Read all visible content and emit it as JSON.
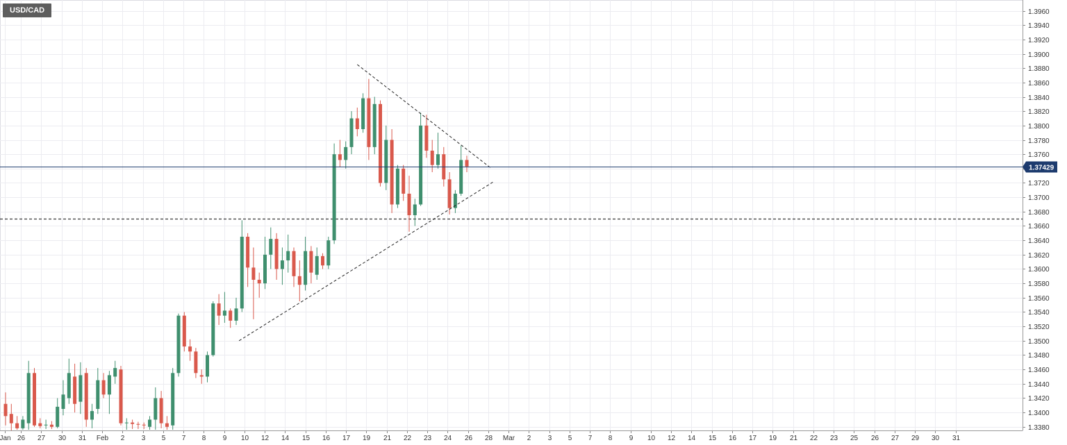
{
  "symbol": "USD/CAD",
  "chart_data": {
    "type": "candlestick",
    "title": "USD/CAD",
    "ylim": [
      1.3375,
      1.3975
    ],
    "y_ticks": [
      "1.3380",
      "1.3400",
      "1.3420",
      "1.3440",
      "1.3460",
      "1.3480",
      "1.3500",
      "1.3520",
      "1.3540",
      "1.3560",
      "1.3580",
      "1.3600",
      "1.3620",
      "1.3640",
      "1.3660",
      "1.3680",
      "1.3700",
      "1.3720",
      "1.3740",
      "1.3760",
      "1.3780",
      "1.3800",
      "1.3820",
      "1.3840",
      "1.3860",
      "1.3880",
      "1.3900",
      "1.3920",
      "1.3940",
      "1.3960"
    ],
    "x_ticks": [
      "Jan",
      "26",
      "27",
      "30",
      "31",
      "Feb",
      "2",
      "3",
      "5",
      "7",
      "8",
      "9",
      "10",
      "12",
      "14",
      "15",
      "16",
      "17",
      "19",
      "21",
      "22",
      "23",
      "24",
      "26",
      "28",
      "Mar",
      "2",
      "3",
      "5",
      "7",
      "8",
      "9",
      "10",
      "12",
      "14",
      "15",
      "16",
      "17",
      "19",
      "21",
      "22",
      "23",
      "25",
      "26",
      "27",
      "29",
      "30",
      "31"
    ],
    "current_price": 1.3743,
    "current_price_label": "1.37429",
    "horizontal_line": 1.367,
    "grid": true,
    "days": [
      {
        "o": 1.3412,
        "h": 1.3428,
        "l": 1.3382,
        "c": 1.3395
      },
      {
        "o": 1.3398,
        "h": 1.3412,
        "l": 1.3375,
        "c": 1.3385
      },
      {
        "o": 1.3385,
        "h": 1.3395,
        "l": 1.3376,
        "c": 1.3378
      },
      {
        "o": 1.3378,
        "h": 1.3395,
        "l": 1.3376,
        "c": 1.339
      },
      {
        "o": 1.3385,
        "h": 1.3472,
        "l": 1.3376,
        "c": 1.3455
      },
      {
        "o": 1.3455,
        "h": 1.3462,
        "l": 1.338,
        "c": 1.3382
      },
      {
        "o": 1.3385,
        "h": 1.3392,
        "l": 1.3378,
        "c": 1.3381
      },
      {
        "o": 1.3382,
        "h": 1.339,
        "l": 1.3377,
        "c": 1.3383
      },
      {
        "o": 1.3383,
        "h": 1.3388,
        "l": 1.3377,
        "c": 1.338
      },
      {
        "o": 1.338,
        "h": 1.342,
        "l": 1.3378,
        "c": 1.3408
      },
      {
        "o": 1.3405,
        "h": 1.3445,
        "l": 1.3396,
        "c": 1.3425
      },
      {
        "o": 1.342,
        "h": 1.3475,
        "l": 1.3412,
        "c": 1.3455
      },
      {
        "o": 1.345,
        "h": 1.3468,
        "l": 1.34,
        "c": 1.3412
      },
      {
        "o": 1.3415,
        "h": 1.347,
        "l": 1.3398,
        "c": 1.3452
      },
      {
        "o": 1.3455,
        "h": 1.3462,
        "l": 1.338,
        "c": 1.339
      },
      {
        "o": 1.339,
        "h": 1.3412,
        "l": 1.3378,
        "c": 1.3402
      },
      {
        "o": 1.3405,
        "h": 1.3462,
        "l": 1.3398,
        "c": 1.3445
      },
      {
        "o": 1.3445,
        "h": 1.3455,
        "l": 1.342,
        "c": 1.3425
      },
      {
        "o": 1.3425,
        "h": 1.3458,
        "l": 1.3398,
        "c": 1.3452
      },
      {
        "o": 1.345,
        "h": 1.3472,
        "l": 1.344,
        "c": 1.3462
      },
      {
        "o": 1.346,
        "h": 1.3465,
        "l": 1.3382,
        "c": 1.3385
      },
      {
        "o": 1.3385,
        "h": 1.3392,
        "l": 1.3376,
        "c": 1.3386
      },
      {
        "o": 1.3386,
        "h": 1.339,
        "l": 1.3377,
        "c": 1.3384
      },
      {
        "o": 1.3384,
        "h": 1.3387,
        "l": 1.3377,
        "c": 1.3383
      },
      {
        "o": 1.3383,
        "h": 1.3386,
        "l": 1.3377,
        "c": 1.3382
      },
      {
        "o": 1.338,
        "h": 1.3395,
        "l": 1.3376,
        "c": 1.339
      },
      {
        "o": 1.339,
        "h": 1.3435,
        "l": 1.3376,
        "c": 1.342
      },
      {
        "o": 1.342,
        "h": 1.343,
        "l": 1.3378,
        "c": 1.3385
      },
      {
        "o": 1.3385,
        "h": 1.3395,
        "l": 1.3376,
        "c": 1.338
      },
      {
        "o": 1.3382,
        "h": 1.3462,
        "l": 1.3376,
        "c": 1.3455
      },
      {
        "o": 1.3455,
        "h": 1.3538,
        "l": 1.345,
        "c": 1.3535
      },
      {
        "o": 1.3535,
        "h": 1.354,
        "l": 1.3485,
        "c": 1.3492
      },
      {
        "o": 1.3492,
        "h": 1.3502,
        "l": 1.3472,
        "c": 1.3485
      },
      {
        "o": 1.3485,
        "h": 1.349,
        "l": 1.3448,
        "c": 1.3455
      },
      {
        "o": 1.3452,
        "h": 1.346,
        "l": 1.344,
        "c": 1.345
      },
      {
        "o": 1.345,
        "h": 1.3485,
        "l": 1.3442,
        "c": 1.348
      },
      {
        "o": 1.348,
        "h": 1.3555,
        "l": 1.3478,
        "c": 1.3552
      },
      {
        "o": 1.3552,
        "h": 1.3565,
        "l": 1.3522,
        "c": 1.3535
      },
      {
        "o": 1.3535,
        "h": 1.3568,
        "l": 1.3525,
        "c": 1.3542
      },
      {
        "o": 1.3542,
        "h": 1.3545,
        "l": 1.3518,
        "c": 1.3528
      },
      {
        "o": 1.3528,
        "h": 1.356,
        "l": 1.3522,
        "c": 1.3545
      },
      {
        "o": 1.3545,
        "h": 1.3668,
        "l": 1.354,
        "c": 1.3645
      },
      {
        "o": 1.3645,
        "h": 1.365,
        "l": 1.3575,
        "c": 1.3602
      },
      {
        "o": 1.3602,
        "h": 1.363,
        "l": 1.353,
        "c": 1.3585
      },
      {
        "o": 1.3585,
        "h": 1.3595,
        "l": 1.356,
        "c": 1.358
      },
      {
        "o": 1.358,
        "h": 1.3645,
        "l": 1.3572,
        "c": 1.362
      },
      {
        "o": 1.362,
        "h": 1.3658,
        "l": 1.36,
        "c": 1.3642
      },
      {
        "o": 1.3642,
        "h": 1.365,
        "l": 1.3585,
        "c": 1.36
      },
      {
        "o": 1.36,
        "h": 1.363,
        "l": 1.3578,
        "c": 1.3612
      },
      {
        "o": 1.3612,
        "h": 1.3648,
        "l": 1.3595,
        "c": 1.3625
      },
      {
        "o": 1.3625,
        "h": 1.363,
        "l": 1.3575,
        "c": 1.359
      },
      {
        "o": 1.359,
        "h": 1.3612,
        "l": 1.3555,
        "c": 1.3578
      },
      {
        "o": 1.3578,
        "h": 1.3645,
        "l": 1.357,
        "c": 1.3625
      },
      {
        "o": 1.3625,
        "h": 1.3632,
        "l": 1.358,
        "c": 1.3595
      },
      {
        "o": 1.3592,
        "h": 1.363,
        "l": 1.3585,
        "c": 1.3618
      },
      {
        "o": 1.3618,
        "h": 1.3622,
        "l": 1.36,
        "c": 1.3605
      },
      {
        "o": 1.3605,
        "h": 1.3645,
        "l": 1.36,
        "c": 1.364
      },
      {
        "o": 1.364,
        "h": 1.3775,
        "l": 1.3635,
        "c": 1.376
      },
      {
        "o": 1.376,
        "h": 1.378,
        "l": 1.3742,
        "c": 1.3752
      },
      {
        "o": 1.3752,
        "h": 1.3778,
        "l": 1.374,
        "c": 1.377
      },
      {
        "o": 1.377,
        "h": 1.382,
        "l": 1.376,
        "c": 1.381
      },
      {
        "o": 1.381,
        "h": 1.3825,
        "l": 1.3785,
        "c": 1.3795
      },
      {
        "o": 1.3795,
        "h": 1.3845,
        "l": 1.379,
        "c": 1.3838
      },
      {
        "o": 1.3838,
        "h": 1.3865,
        "l": 1.3752,
        "c": 1.377
      },
      {
        "o": 1.377,
        "h": 1.384,
        "l": 1.376,
        "c": 1.383
      },
      {
        "o": 1.383,
        "h": 1.3835,
        "l": 1.3715,
        "c": 1.372
      },
      {
        "o": 1.372,
        "h": 1.38,
        "l": 1.371,
        "c": 1.378
      },
      {
        "o": 1.378,
        "h": 1.3795,
        "l": 1.3678,
        "c": 1.369
      },
      {
        "o": 1.369,
        "h": 1.3745,
        "l": 1.3685,
        "c": 1.374
      },
      {
        "o": 1.374,
        "h": 1.3745,
        "l": 1.3695,
        "c": 1.3705
      },
      {
        "o": 1.3705,
        "h": 1.373,
        "l": 1.3652,
        "c": 1.3675
      },
      {
        "o": 1.3675,
        "h": 1.3698,
        "l": 1.366,
        "c": 1.369
      },
      {
        "o": 1.369,
        "h": 1.3818,
        "l": 1.3688,
        "c": 1.38
      },
      {
        "o": 1.38,
        "h": 1.3815,
        "l": 1.3755,
        "c": 1.3765
      },
      {
        "o": 1.3765,
        "h": 1.378,
        "l": 1.3735,
        "c": 1.3745
      },
      {
        "o": 1.3745,
        "h": 1.379,
        "l": 1.374,
        "c": 1.376
      },
      {
        "o": 1.376,
        "h": 1.377,
        "l": 1.3715,
        "c": 1.3725
      },
      {
        "o": 1.3725,
        "h": 1.3735,
        "l": 1.3676,
        "c": 1.3685
      },
      {
        "o": 1.3685,
        "h": 1.371,
        "l": 1.3678,
        "c": 1.3705
      },
      {
        "o": 1.3705,
        "h": 1.3772,
        "l": 1.3702,
        "c": 1.3752
      },
      {
        "o": 1.3752,
        "h": 1.3758,
        "l": 1.3735,
        "c": 1.3743
      }
    ],
    "trendlines": [
      {
        "style": "dashed",
        "from": {
          "day": 40.5,
          "price": 1.35
        },
        "to": {
          "day": 84.5,
          "price": 1.3721
        }
      },
      {
        "style": "dashed",
        "from": {
          "day": 61.0,
          "price": 1.3885
        },
        "to": {
          "day": 84.3,
          "price": 1.374
        }
      }
    ],
    "colors": {
      "up": "#3f8f6e",
      "down": "#d9594c",
      "price_line": "#1d3b6e",
      "badge": "#1d3b6e",
      "grid": "#ececf1",
      "text": "#333333"
    }
  }
}
